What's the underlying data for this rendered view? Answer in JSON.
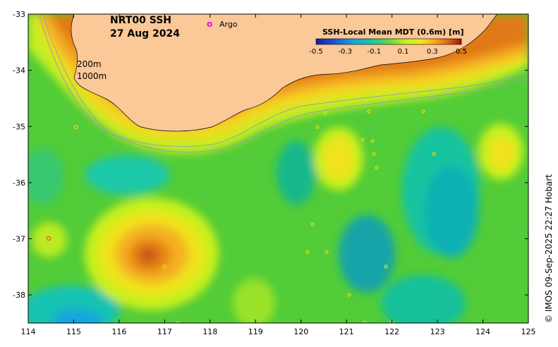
{
  "map": {
    "title_line1": "NRT00 SSH",
    "title_line2": "27 Aug 2024",
    "argo_marker": "o",
    "argo_label": "Argo",
    "isobath_200": "200m",
    "isobath_1000": "1000m",
    "copyright": "© IMOS 09-Sep-2025 22:27 Hobart",
    "colors": {
      "land": "#fbc898",
      "argo_marker": "#e011e0",
      "isobath": "#a0a0a0"
    }
  },
  "colorbar": {
    "title": "SSH-Local Mean MDT (0.6m) [m]",
    "ticks": [
      "-0.5",
      "-0.3",
      "-0.1",
      "0.1",
      "0.3",
      "0.5"
    ],
    "range": [
      -0.5,
      0.5
    ]
  },
  "axes": {
    "x_ticks": [
      "114",
      "115",
      "116",
      "117",
      "118",
      "119",
      "120",
      "121",
      "122",
      "123",
      "124",
      "125"
    ],
    "y_ticks": [
      "-33",
      "-34",
      "-35",
      "-36",
      "-37",
      "-38"
    ],
    "xlim": [
      114,
      125
    ],
    "ylim": [
      -38.5,
      -33
    ]
  }
}
